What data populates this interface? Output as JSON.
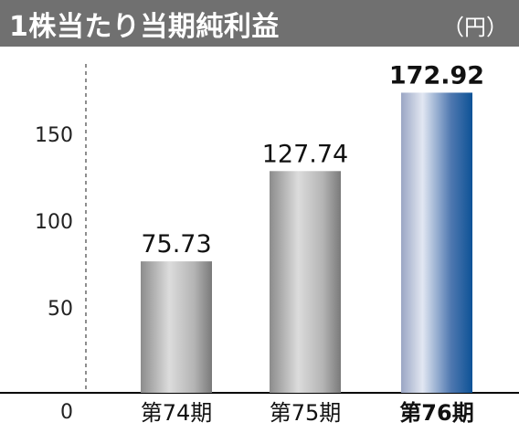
{
  "chart_data": {
    "type": "bar",
    "title": "1株当たり当期純利益",
    "unit": "（円）",
    "categories": [
      "第74期",
      "第75期",
      "第76期"
    ],
    "values": [
      75.73,
      127.74,
      172.92
    ],
    "value_labels": [
      "75.73",
      "127.74",
      "172.92"
    ],
    "yticks": [
      "0",
      "50",
      "100",
      "150"
    ],
    "ylim": [
      0,
      200
    ],
    "highlight_index": 2,
    "colors": {
      "header_bg": "#707070",
      "bar_gray": "#b8b8b8",
      "bar_highlight": "#1a5fa0"
    }
  }
}
